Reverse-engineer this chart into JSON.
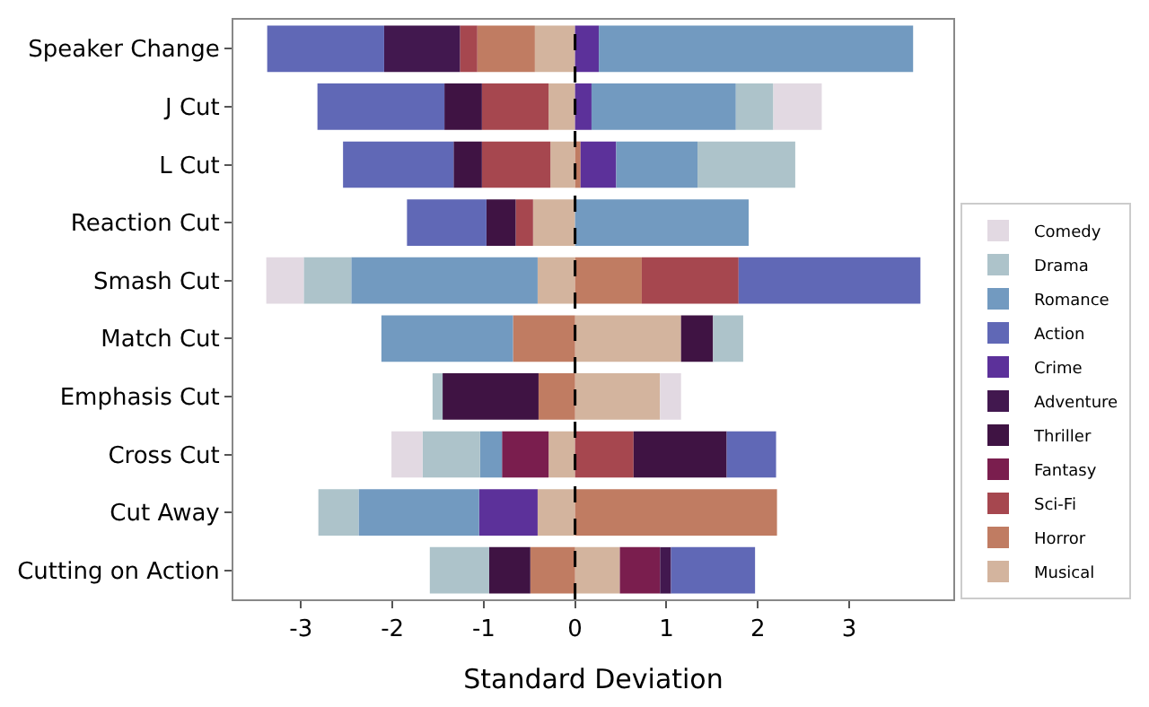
{
  "chart_data": {
    "type": "bar",
    "orientation": "horizontal",
    "stacked": true,
    "xlabel": "Standard Deviation",
    "categories": [
      "Speaker Change",
      "J Cut",
      "L Cut",
      "Reaction Cut",
      "Smash Cut",
      "Match Cut",
      "Emphasis Cut",
      "Cross Cut",
      "Cut Away",
      "Cutting on Action"
    ],
    "series": [
      {
        "name": "Musical",
        "color": "#d3b49e",
        "values": [
          -0.44,
          -0.29,
          -0.27,
          -0.46,
          -0.41,
          1.16,
          0.93,
          -0.29,
          -0.41,
          0.49
        ]
      },
      {
        "name": "Horror",
        "color": "#c07c62",
        "values": [
          -0.63,
          null,
          0.06,
          null,
          0.73,
          -0.68,
          -0.4,
          null,
          2.21,
          -0.49
        ]
      },
      {
        "name": "Sci-Fi",
        "color": "#a6474f",
        "values": [
          -0.19,
          -0.73,
          -0.75,
          -0.19,
          1.06,
          null,
          null,
          0.64,
          null,
          null
        ]
      },
      {
        "name": "Fantasy",
        "color": "#7a1e4e",
        "values": [
          null,
          null,
          null,
          null,
          null,
          null,
          null,
          -0.51,
          null,
          0.44
        ]
      },
      {
        "name": "Thriller",
        "color": "#3f1343",
        "values": [
          null,
          -0.41,
          -0.31,
          -0.32,
          null,
          0.35,
          -1.05,
          1.02,
          null,
          -0.45
        ]
      },
      {
        "name": "Adventure",
        "color": "#42184f",
        "values": [
          -0.83,
          null,
          null,
          null,
          null,
          null,
          null,
          null,
          null,
          0.12
        ]
      },
      {
        "name": "Crime",
        "color": "#5c319a",
        "values": [
          0.26,
          0.18,
          0.39,
          null,
          null,
          null,
          null,
          null,
          -0.64,
          null
        ]
      },
      {
        "name": "Action",
        "color": "#6068b6",
        "values": [
          -1.28,
          -1.39,
          -1.21,
          -0.87,
          1.99,
          null,
          null,
          0.54,
          null,
          0.92
        ]
      },
      {
        "name": "Romance",
        "color": "#729ac0",
        "values": [
          3.44,
          1.58,
          0.89,
          1.9,
          -2.04,
          -1.44,
          null,
          -0.24,
          -1.32,
          null
        ]
      },
      {
        "name": "Drama",
        "color": "#adc3ca",
        "values": [
          null,
          0.41,
          1.07,
          null,
          -0.52,
          0.33,
          -0.11,
          -0.63,
          -0.44,
          -0.65
        ]
      },
      {
        "name": "Comedy",
        "color": "#e2d9e2",
        "values": [
          null,
          0.53,
          null,
          null,
          -0.41,
          null,
          0.23,
          -0.34,
          null,
          null
        ]
      }
    ],
    "xlim": [
      -3.74,
      4.14
    ],
    "xticks": [
      -3,
      -2,
      -1,
      0,
      1,
      2,
      3
    ],
    "ref_lines": [
      {
        "axis": "x",
        "value": 0,
        "color": "#000000",
        "line_style": "dashed"
      }
    ],
    "grid": false,
    "legend": "bottom right"
  }
}
